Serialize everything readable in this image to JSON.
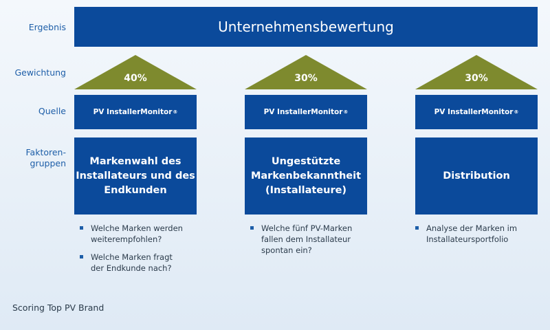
{
  "row_labels": {
    "result": "Ergebnis",
    "weighting": "Gewichtung",
    "source": "Quelle",
    "factor_groups_line1": "Faktoren-",
    "factor_groups_line2": "gruppen"
  },
  "banner": {
    "title": "Unternehmensbewertung"
  },
  "columns": [
    {
      "weight": "40%",
      "source": "PV InstallerMonitor",
      "source_mark": "®",
      "factor_line1": "Markenwahl des",
      "factor_line2": "Installateurs und des",
      "factor_line3": "Endkunden",
      "bullets": [
        {
          "line1": "Welche Marken werden",
          "line2": "weiterempfohlen?"
        },
        {
          "line1": "Welche Marken fragt",
          "line2": "der Endkunde nach?"
        }
      ]
    },
    {
      "weight": "30%",
      "source": "PV InstallerMonitor",
      "source_mark": "®",
      "factor_line1": "Ungestützte",
      "factor_line2": "Markenbekanntheit",
      "factor_line3": "(Installateure)",
      "bullets": [
        {
          "line1": "Welche fünf PV-Marken",
          "line2": "fallen dem Installateur",
          "line3": "spontan ein?"
        }
      ]
    },
    {
      "weight": "30%",
      "source": "PV InstallerMonitor",
      "source_mark": "®",
      "factor_line1": "Distribution",
      "bullets": [
        {
          "line1": "Analyse der Marken im",
          "line2": "Installateursportfolio"
        }
      ]
    }
  ],
  "footer": "Scoring Top PV Brand",
  "colors": {
    "primary_blue": "#0b4a9b",
    "weight_olive": "#7e8a2e",
    "label_blue": "#1d5ea8"
  }
}
